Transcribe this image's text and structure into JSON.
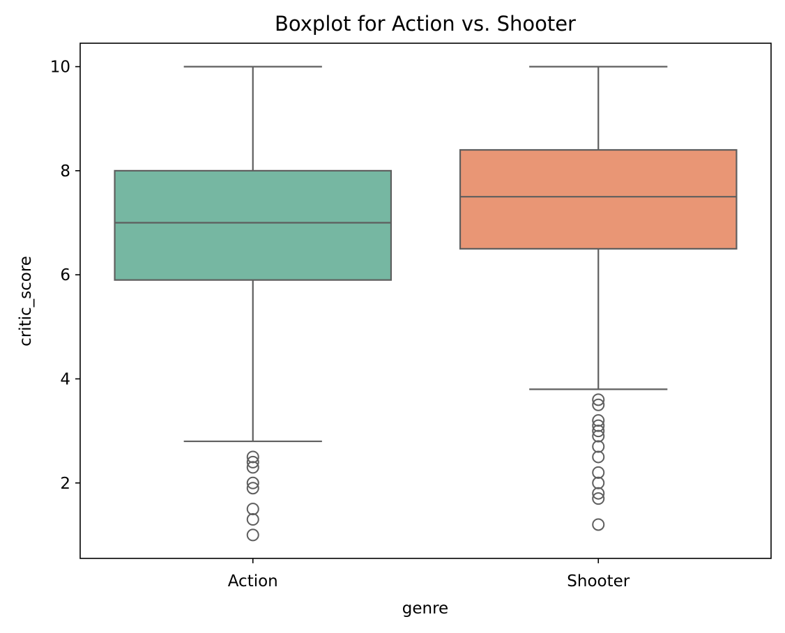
{
  "chart_data": {
    "type": "box",
    "title": "Boxplot for Action vs. Shooter",
    "xlabel": "genre",
    "ylabel": "critic_score",
    "categories": [
      "Action",
      "Shooter"
    ],
    "ylim": [
      0.55,
      10.45
    ],
    "yticks": [
      2,
      4,
      6,
      8,
      10
    ],
    "grid": false,
    "boxes": [
      {
        "category": "Action",
        "color": "#76b7a2",
        "whisker_low": 2.8,
        "q1": 5.9,
        "median": 7.0,
        "q3": 8.0,
        "whisker_high": 10.0,
        "outliers": [
          2.5,
          2.4,
          2.3,
          2.0,
          1.9,
          1.5,
          1.3,
          1.0
        ]
      },
      {
        "category": "Shooter",
        "color": "#e99675",
        "whisker_low": 3.8,
        "q1": 6.5,
        "median": 7.5,
        "q3": 8.4,
        "whisker_high": 10.0,
        "outliers": [
          3.6,
          3.5,
          3.2,
          3.1,
          3.0,
          2.9,
          2.7,
          2.5,
          2.2,
          2.0,
          1.8,
          1.7,
          1.2
        ]
      }
    ],
    "line_color": "#5e5e5e"
  }
}
